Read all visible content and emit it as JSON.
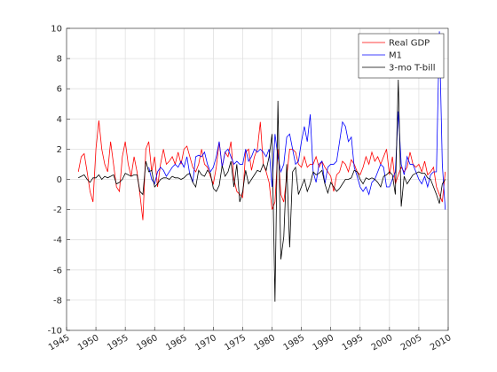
{
  "chart_data": {
    "type": "line",
    "xlim": [
      1945,
      2010
    ],
    "xticks": [
      1945,
      1950,
      1955,
      1960,
      1965,
      1970,
      1975,
      1980,
      1985,
      1990,
      1995,
      2000,
      2005,
      2010
    ],
    "ylim": [
      -10,
      10
    ],
    "yticks": [
      -10,
      -8,
      -6,
      -4,
      -2,
      0,
      2,
      4,
      6,
      8,
      10
    ],
    "grid": true,
    "legend": "upper-right",
    "series": [
      {
        "name": "Real GDP",
        "color": "#ff0000",
        "x": [
          1947,
          1947.5,
          1948,
          1948.5,
          1949,
          1949.5,
          1950,
          1950.5,
          1951,
          1951.5,
          1952,
          1952.5,
          1953,
          1953.5,
          1954,
          1954.5,
          1955,
          1955.5,
          1956,
          1956.5,
          1957,
          1957.5,
          1958,
          1958.5,
          1959,
          1959.5,
          1960,
          1960.5,
          1961,
          1961.5,
          1962,
          1962.5,
          1963,
          1963.5,
          1964,
          1964.5,
          1965,
          1965.5,
          1966,
          1966.5,
          1967,
          1967.5,
          1968,
          1968.5,
          1969,
          1969.5,
          1970,
          1970.5,
          1971,
          1971.5,
          1972,
          1972.5,
          1973,
          1973.5,
          1974,
          1974.5,
          1975,
          1975.5,
          1976,
          1976.5,
          1977,
          1977.5,
          1978,
          1978.5,
          1979,
          1979.5,
          1980,
          1980.5,
          1981,
          1981.5,
          1982,
          1982.5,
          1983,
          1983.5,
          1984,
          1984.5,
          1985,
          1985.5,
          1986,
          1986.5,
          1987,
          1987.5,
          1988,
          1988.5,
          1989,
          1989.5,
          1990,
          1990.5,
          1991,
          1991.5,
          1992,
          1992.5,
          1993,
          1993.5,
          1994,
          1994.5,
          1995,
          1995.5,
          1996,
          1996.5,
          1997,
          1997.5,
          1998,
          1998.5,
          1999,
          1999.5,
          2000,
          2000.5,
          2001,
          2001.5,
          2002,
          2002.5,
          2003,
          2003.5,
          2004,
          2004.5,
          2005,
          2005.5,
          2006,
          2006.5,
          2007,
          2007.5,
          2008,
          2008.5,
          2009,
          2009.5
        ],
        "values": [
          0.5,
          1.5,
          1.7,
          0.5,
          -0.8,
          -1.5,
          2.0,
          3.9,
          2.0,
          1.0,
          0.5,
          2.5,
          1.0,
          -0.5,
          -0.8,
          1.5,
          2.5,
          1.0,
          0.2,
          1.5,
          0.5,
          -1.0,
          -2.7,
          2.0,
          2.5,
          0.5,
          1.5,
          -0.5,
          1.0,
          2.0,
          1.0,
          1.2,
          1.5,
          1.0,
          1.8,
          1.0,
          2.0,
          2.2,
          1.5,
          0.8,
          0.5,
          1.0,
          2.0,
          1.0,
          0.8,
          0.2,
          -0.3,
          0.8,
          2.5,
          0.8,
          1.8,
          1.5,
          2.5,
          0.0,
          -0.8,
          -1.0,
          -1.2,
          1.8,
          2.0,
          0.6,
          1.5,
          2.0,
          3.8,
          1.0,
          0.5,
          -0.2,
          -2.0,
          -1.5,
          2.0,
          -1.0,
          -1.5,
          0.2,
          2.0,
          2.0,
          1.8,
          1.0,
          0.8,
          1.5,
          0.8,
          1.0,
          1.0,
          1.5,
          0.8,
          1.2,
          0.8,
          0.5,
          0.2,
          -0.8,
          0.3,
          0.5,
          1.2,
          1.0,
          0.5,
          1.3,
          1.0,
          0.5,
          0.3,
          0.8,
          1.5,
          1.0,
          1.8,
          1.2,
          1.5,
          1.0,
          1.5,
          2.0,
          0.3,
          1.5,
          -0.3,
          0.3,
          0.8,
          0.5,
          0.8,
          1.8,
          1.0,
          0.8,
          1.0,
          0.5,
          1.2,
          0.3,
          0.5,
          0.8,
          -0.5,
          -1.0,
          -1.5,
          0.5
        ]
      },
      {
        "name": "M1",
        "color": "#0000ff",
        "x": [
          1959,
          1959.5,
          1960,
          1960.5,
          1961,
          1961.5,
          1962,
          1962.5,
          1963,
          1963.5,
          1964,
          1964.5,
          1965,
          1965.5,
          1966,
          1966.5,
          1967,
          1967.5,
          1968,
          1968.5,
          1969,
          1969.5,
          1970,
          1970.5,
          1971,
          1971.5,
          1972,
          1972.5,
          1973,
          1973.5,
          1974,
          1974.5,
          1975,
          1975.5,
          1976,
          1976.5,
          1977,
          1977.5,
          1978,
          1978.5,
          1979,
          1979.5,
          1980,
          1980.5,
          1981,
          1981.5,
          1982,
          1982.5,
          1983,
          1983.5,
          1984,
          1984.5,
          1985,
          1985.5,
          1986,
          1986.5,
          1987,
          1987.5,
          1988,
          1988.5,
          1989,
          1989.5,
          1990,
          1990.5,
          1991,
          1991.5,
          1992,
          1992.5,
          1993,
          1993.5,
          1994,
          1994.5,
          1995,
          1995.5,
          1996,
          1996.5,
          1997,
          1997.5,
          1998,
          1998.5,
          1999,
          1999.5,
          2000,
          2000.5,
          2001,
          2001.5,
          2002,
          2002.5,
          2003,
          2003.5,
          2004,
          2004.5,
          2005,
          2005.5,
          2006,
          2006.5,
          2007,
          2007.5,
          2008,
          2008.5,
          2009,
          2009.5
        ],
        "values": [
          0.8,
          0.0,
          -0.3,
          0.5,
          0.8,
          0.6,
          0.2,
          0.5,
          0.8,
          1.0,
          0.8,
          1.2,
          0.8,
          1.5,
          0.3,
          -0.2,
          1.5,
          1.6,
          1.5,
          1.8,
          1.0,
          0.5,
          0.8,
          1.5,
          2.5,
          0.8,
          1.8,
          2.0,
          1.5,
          1.0,
          1.2,
          1.0,
          1.0,
          2.0,
          1.2,
          1.5,
          2.0,
          1.8,
          2.0,
          1.8,
          1.5,
          2.0,
          -0.5,
          3.0,
          1.5,
          0.5,
          1.0,
          2.8,
          3.0,
          2.0,
          1.0,
          1.2,
          2.5,
          3.5,
          2.5,
          4.3,
          0.5,
          -0.2,
          1.0,
          1.2,
          -0.3,
          0.8,
          1.0,
          1.0,
          1.2,
          2.5,
          3.8,
          3.5,
          2.5,
          2.8,
          0.8,
          0.2,
          -0.5,
          -0.8,
          -0.5,
          -1.0,
          -0.2,
          0.0,
          0.5,
          1.0,
          0.8,
          -0.5,
          -0.5,
          0.0,
          0.5,
          4.5,
          1.0,
          0.3,
          1.5,
          1.0,
          1.0,
          0.5,
          0.0,
          -0.3,
          0.2,
          -0.5,
          0.3,
          0.5,
          0.5,
          9.8,
          1.0,
          -2.0
        ]
      },
      {
        "name": "3-mo T-bill",
        "color": "#000000",
        "x": [
          1947,
          1947.5,
          1948,
          1948.5,
          1949,
          1949.5,
          1950,
          1950.5,
          1951,
          1951.5,
          1952,
          1952.5,
          1953,
          1953.5,
          1954,
          1954.5,
          1955,
          1955.5,
          1956,
          1956.5,
          1957,
          1957.5,
          1958,
          1958.5,
          1959,
          1959.5,
          1960,
          1960.5,
          1961,
          1961.5,
          1962,
          1962.5,
          1963,
          1963.5,
          1964,
          1964.5,
          1965,
          1965.5,
          1966,
          1966.5,
          1967,
          1967.5,
          1968,
          1968.5,
          1969,
          1969.5,
          1970,
          1970.5,
          1971,
          1971.5,
          1972,
          1972.5,
          1973,
          1973.5,
          1974,
          1974.5,
          1975,
          1975.5,
          1976,
          1976.5,
          1977,
          1977.5,
          1978,
          1978.5,
          1979,
          1979.5,
          1980,
          1980.5,
          1981,
          1981.5,
          1982,
          1982.5,
          1983,
          1983.5,
          1984,
          1984.5,
          1985,
          1985.5,
          1986,
          1986.5,
          1987,
          1987.5,
          1988,
          1988.5,
          1989,
          1989.5,
          1990,
          1990.5,
          1991,
          1991.5,
          1992,
          1992.5,
          1993,
          1993.5,
          1994,
          1994.5,
          1995,
          1995.5,
          1996,
          1996.5,
          1997,
          1997.5,
          1998,
          1998.5,
          1999,
          1999.5,
          2000,
          2000.5,
          2001,
          2001.5,
          2002,
          2002.5,
          2003,
          2003.5,
          2004,
          2004.5,
          2005,
          2005.5,
          2006,
          2006.5,
          2007,
          2007.5,
          2008,
          2008.5,
          2009,
          2009.5
        ],
        "values": [
          0.1,
          0.2,
          0.3,
          0.0,
          -0.2,
          0.1,
          0.1,
          0.3,
          0.0,
          0.2,
          0.1,
          0.2,
          0.3,
          -0.3,
          -0.2,
          0.0,
          0.4,
          0.3,
          0.2,
          0.3,
          0.3,
          -0.8,
          -1.0,
          1.2,
          0.5,
          0.6,
          -0.5,
          -0.3,
          0.0,
          0.1,
          0.1,
          0.0,
          0.2,
          0.1,
          0.1,
          0.0,
          0.1,
          0.3,
          0.4,
          -0.2,
          -0.5,
          0.6,
          0.3,
          0.2,
          0.6,
          0.4,
          -0.6,
          -0.8,
          -0.4,
          0.9,
          0.2,
          0.5,
          1.2,
          -0.5,
          1.0,
          -1.5,
          -0.8,
          0.6,
          -0.3,
          0.0,
          0.3,
          0.6,
          0.5,
          1.0,
          0.6,
          1.5,
          3.0,
          -8.1,
          5.2,
          -5.3,
          -3.8,
          1.0,
          -4.5,
          0.5,
          0.8,
          -1.0,
          -0.5,
          0.0,
          -0.8,
          -0.3,
          0.5,
          0.3,
          0.4,
          0.6,
          -0.3,
          -0.9,
          -0.2,
          -0.5,
          -0.8,
          -0.6,
          -0.3,
          0.0,
          0.0,
          0.1,
          0.6,
          0.5,
          0.0,
          -0.3,
          0.1,
          0.0,
          0.1,
          0.0,
          -0.2,
          -0.5,
          0.2,
          0.3,
          0.5,
          0.3,
          -1.0,
          6.6,
          -1.8,
          0.2,
          -0.3,
          0.0,
          0.3,
          0.4,
          0.5,
          0.4,
          0.4,
          0.1,
          0.0,
          -0.5,
          -1.0,
          -1.6,
          -0.3,
          0.0
        ]
      }
    ]
  }
}
